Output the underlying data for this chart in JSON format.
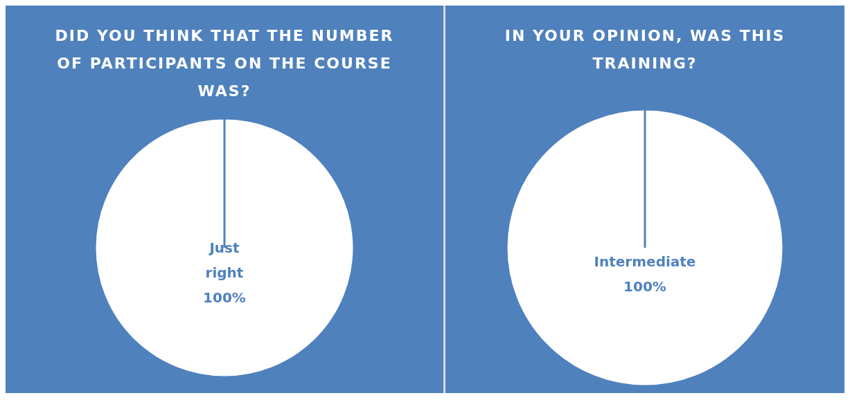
{
  "chart_data": [
    {
      "type": "pie",
      "title": "DID YOU THINK THAT THE NUMBER OF PARTICIPANTS ON THE COURSE WAS?",
      "categories": [
        "Just right"
      ],
      "values": [
        100
      ],
      "colors": [
        "#ffffff"
      ],
      "value_labels": [
        "100%"
      ]
    },
    {
      "type": "pie",
      "title": "IN YOUR OPINION, WAS THIS TRAINING?",
      "categories": [
        "Intermediate"
      ],
      "values": [
        100
      ],
      "colors": [
        "#ffffff"
      ],
      "value_labels": [
        "100%"
      ]
    }
  ]
}
